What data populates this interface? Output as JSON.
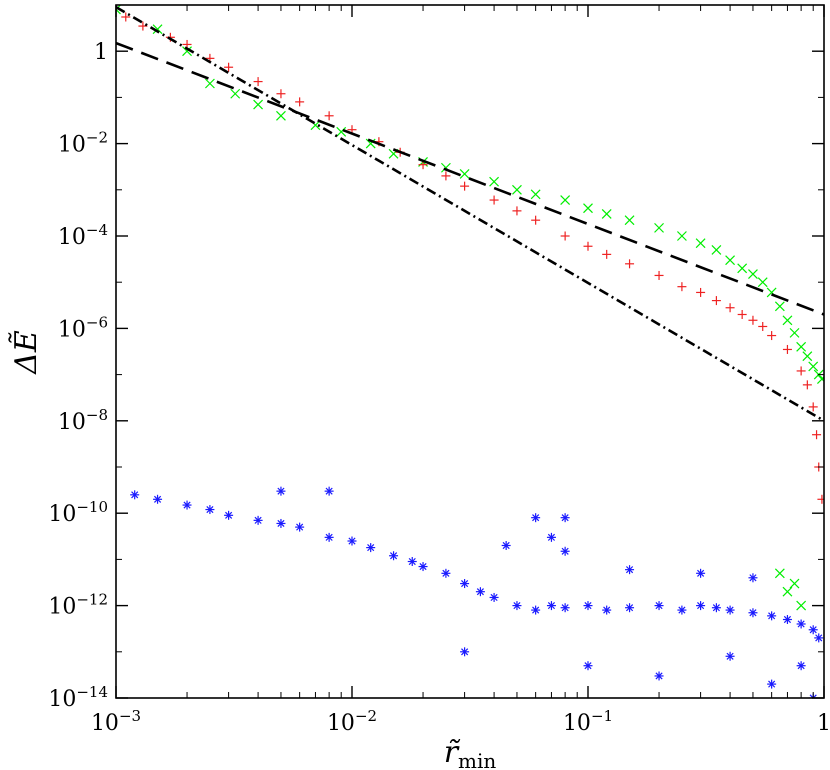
{
  "chart_data": {
    "type": "scatter",
    "xscale": "log",
    "yscale": "log",
    "xlim": [
      0.001,
      1
    ],
    "ylim": [
      1e-14,
      10
    ],
    "xlabel_main": "r̃",
    "xlabel_sub": "min",
    "ylabel": "ΔẼ",
    "x_ticks": [
      {
        "value": 0.001,
        "base": "10",
        "exp": "−3"
      },
      {
        "value": 0.01,
        "base": "10",
        "exp": "−2"
      },
      {
        "value": 0.1,
        "base": "10",
        "exp": "−1"
      },
      {
        "value": 1,
        "base": "1",
        "exp": ""
      }
    ],
    "y_ticks": [
      {
        "value": 1,
        "base": "1",
        "exp": ""
      },
      {
        "value": 0.01,
        "base": "10",
        "exp": "−2"
      },
      {
        "value": 0.0001,
        "base": "10",
        "exp": "−4"
      },
      {
        "value": 1e-06,
        "base": "10",
        "exp": "−6"
      },
      {
        "value": 1e-08,
        "base": "10",
        "exp": "−8"
      },
      {
        "value": 1e-10,
        "base": "10",
        "exp": "−10"
      },
      {
        "value": 1e-12,
        "base": "10",
        "exp": "−12"
      },
      {
        "value": 1e-14,
        "base": "10",
        "exp": "−14"
      }
    ],
    "colors": {
      "green": "#00ee00",
      "red": "#ee2222",
      "blue": "#1a1aff",
      "line": "#000000"
    },
    "fit_lines": [
      {
        "style": "dashed",
        "x": [
          0.001,
          1
        ],
        "y": [
          1.5,
          2e-06
        ]
      },
      {
        "style": "dash-dot",
        "x": [
          0.001,
          1
        ],
        "y": [
          9,
          1e-08
        ]
      }
    ],
    "series": [
      {
        "marker": "x",
        "color": "#00ee00",
        "x": [
          0.0025,
          0.0032,
          0.004,
          0.005,
          0.007,
          0.009,
          0.012,
          0.015,
          0.02,
          0.025,
          0.03,
          0.04,
          0.05,
          0.06,
          0.08,
          0.1,
          0.12,
          0.15,
          0.2,
          0.25,
          0.3,
          0.35,
          0.4,
          0.45,
          0.5,
          0.55,
          0.6,
          0.65,
          0.7,
          0.75,
          0.8,
          0.85,
          0.9,
          0.95,
          0.98,
          0.001,
          0.0015,
          0.002,
          0.65,
          0.7,
          0.75,
          0.8
        ],
        "y": [
          0.2,
          0.12,
          0.07,
          0.04,
          0.025,
          0.018,
          0.01,
          0.006,
          0.004,
          0.003,
          0.0022,
          0.0015,
          0.001,
          0.0008,
          0.0006,
          0.0004,
          0.0003,
          0.00022,
          0.00015,
          0.0001,
          7e-05,
          5e-05,
          3e-05,
          2e-05,
          1.5e-05,
          1e-05,
          6e-06,
          3e-06,
          1.5e-06,
          8e-07,
          4e-07,
          2.5e-07,
          1.5e-07,
          1e-07,
          8e-08,
          8,
          3,
          1,
          5e-12,
          2e-12,
          3e-12,
          1e-12
        ]
      },
      {
        "marker": "+",
        "color": "#ee2222",
        "x": [
          0.0011,
          0.0013,
          0.0017,
          0.002,
          0.0025,
          0.003,
          0.004,
          0.005,
          0.006,
          0.008,
          0.01,
          0.013,
          0.016,
          0.02,
          0.025,
          0.03,
          0.04,
          0.05,
          0.06,
          0.08,
          0.1,
          0.12,
          0.15,
          0.2,
          0.25,
          0.3,
          0.35,
          0.4,
          0.45,
          0.5,
          0.55,
          0.6,
          0.7,
          0.8,
          0.85,
          0.9,
          0.93,
          0.95,
          0.98
        ],
        "y": [
          5.5,
          3.5,
          2,
          1.4,
          0.7,
          0.45,
          0.22,
          0.12,
          0.08,
          0.04,
          0.02,
          0.011,
          0.0065,
          0.0035,
          0.002,
          0.0012,
          0.0006,
          0.00035,
          0.00022,
          0.0001,
          6e-05,
          4e-05,
          2.5e-05,
          1.4e-05,
          8e-06,
          6e-06,
          4e-06,
          2.8e-06,
          2e-06,
          1.5e-06,
          1.1e-06,
          7e-07,
          3.5e-07,
          1.2e-07,
          6e-08,
          2e-08,
          5e-09,
          1e-09,
          2e-10
        ]
      },
      {
        "marker": "*",
        "color": "#1a1aff",
        "x": [
          0.0012,
          0.0015,
          0.002,
          0.0025,
          0.003,
          0.004,
          0.005,
          0.006,
          0.008,
          0.01,
          0.012,
          0.015,
          0.018,
          0.02,
          0.025,
          0.03,
          0.035,
          0.04,
          0.05,
          0.06,
          0.07,
          0.08,
          0.1,
          0.12,
          0.15,
          0.2,
          0.25,
          0.3,
          0.35,
          0.4,
          0.5,
          0.6,
          0.7,
          0.8,
          0.9,
          0.95,
          0.005,
          0.008,
          0.06,
          0.08,
          0.045,
          0.07,
          0.03,
          0.1,
          0.2,
          0.4,
          0.6,
          0.8,
          0.9,
          0.5,
          0.3,
          0.15,
          0.08
        ],
        "y": [
          2.5e-10,
          2e-10,
          1.5e-10,
          1.2e-10,
          9e-11,
          7e-11,
          6e-11,
          5e-11,
          3e-11,
          2.5e-11,
          1.8e-11,
          1.2e-11,
          9e-12,
          7e-12,
          5e-12,
          3e-12,
          2e-12,
          1.5e-12,
          1e-12,
          8e-13,
          1e-12,
          9e-13,
          1e-12,
          8e-13,
          9e-13,
          1e-12,
          8e-13,
          1e-12,
          9e-13,
          8e-13,
          7e-13,
          6e-13,
          5e-13,
          4e-13,
          3e-13,
          2e-13,
          3e-10,
          3e-10,
          8e-11,
          8e-11,
          2e-11,
          3e-11,
          1e-13,
          5e-14,
          3e-14,
          8e-14,
          2e-14,
          5e-14,
          1e-14,
          4e-12,
          5e-12,
          6e-12,
          1.5e-11
        ]
      }
    ]
  }
}
